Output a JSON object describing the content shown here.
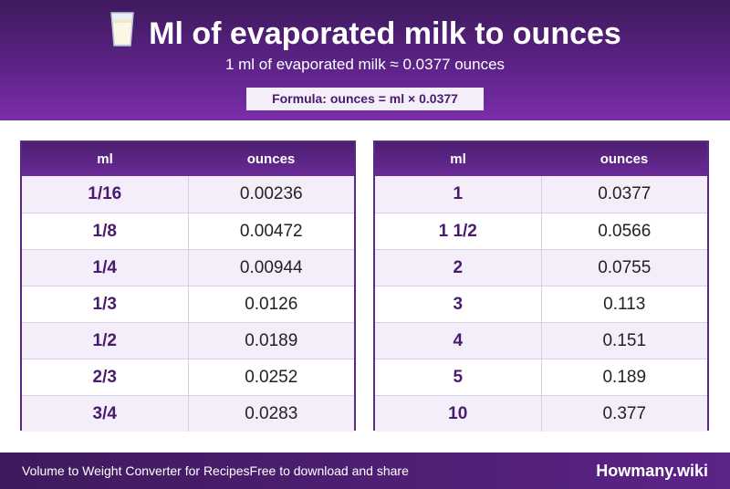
{
  "header": {
    "title": "Ml of evaporated milk to ounces",
    "subtitle": "1 ml of evaporated milk ≈ 0.0377 ounces",
    "formula": "Formula: ounces = ml × 0.0377"
  },
  "table_left": {
    "col_ml": "ml",
    "col_oz": "ounces",
    "rows": [
      {
        "ml": "1/16",
        "oz": "0.00236"
      },
      {
        "ml": "1/8",
        "oz": "0.00472"
      },
      {
        "ml": "1/4",
        "oz": "0.00944"
      },
      {
        "ml": "1/3",
        "oz": "0.0126"
      },
      {
        "ml": "1/2",
        "oz": "0.0189"
      },
      {
        "ml": "2/3",
        "oz": "0.0252"
      },
      {
        "ml": "3/4",
        "oz": "0.0283"
      }
    ]
  },
  "table_right": {
    "col_ml": "ml",
    "col_oz": "ounces",
    "rows": [
      {
        "ml": "1",
        "oz": "0.0377"
      },
      {
        "ml": "1 1/2",
        "oz": "0.0566"
      },
      {
        "ml": "2",
        "oz": "0.0755"
      },
      {
        "ml": "3",
        "oz": "0.113"
      },
      {
        "ml": "4",
        "oz": "0.151"
      },
      {
        "ml": "5",
        "oz": "0.189"
      },
      {
        "ml": "10",
        "oz": "0.377"
      }
    ]
  },
  "footer": {
    "left_text": "Volume to Weight Converter for RecipesFree to download and share",
    "brand": "Howmany.wiki"
  },
  "colors": {
    "accent": "#5c2388",
    "header_dark": "#3e1a5c"
  },
  "icons": {
    "title_icon": "milk-glass-icon"
  }
}
